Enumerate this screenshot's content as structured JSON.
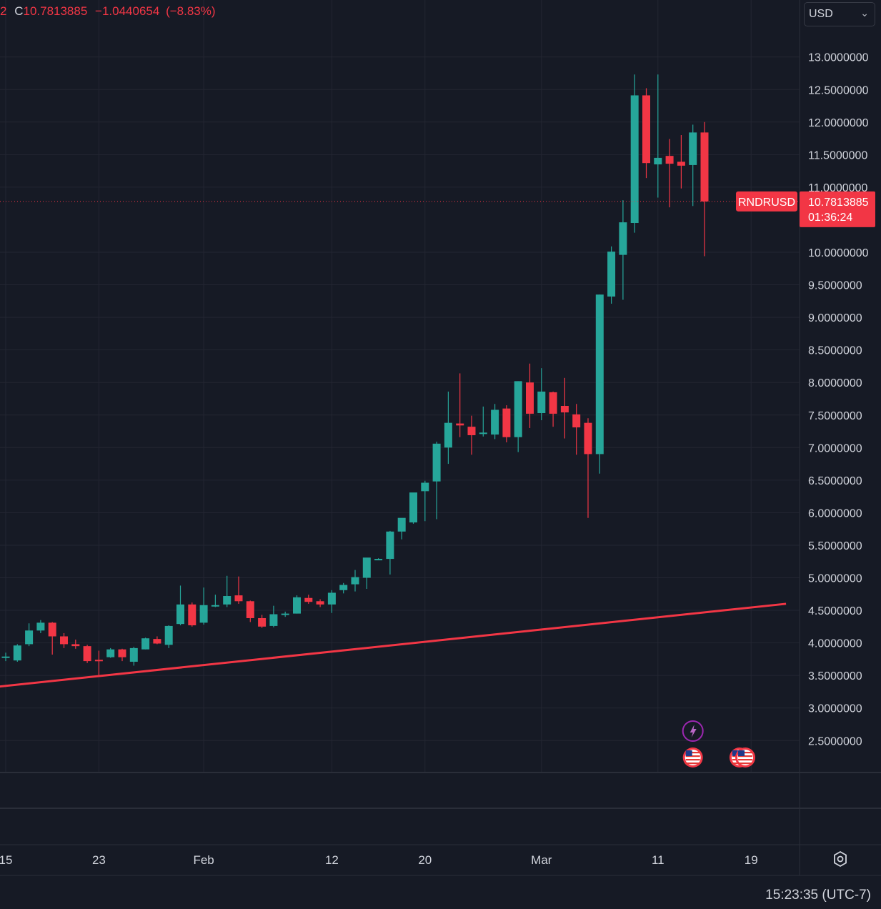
{
  "header": {
    "prefix": "2",
    "close_label": "C",
    "close_value": "10.7813885",
    "change": "−1.0440654",
    "change_pct": "(−8.83%)"
  },
  "currency_select": {
    "value": "USD",
    "icon": "chevron-down-icon"
  },
  "price_tag": {
    "symbol": "RNDRUSD",
    "price": "10.7813885",
    "countdown": "01:36:24"
  },
  "clock": "15:23:35 (UTC-7)",
  "colors": {
    "up": "#26a69a",
    "down": "#f23645",
    "background": "#161a25",
    "grid": "#232632"
  },
  "chart_data": {
    "type": "candlestick",
    "symbol": "RNDRUSD",
    "currency": "USD",
    "y_ticks": [
      "13.0000000",
      "12.5000000",
      "12.0000000",
      "11.5000000",
      "11.0000000",
      "10.0000000",
      "9.5000000",
      "9.0000000",
      "8.5000000",
      "8.0000000",
      "7.5000000",
      "7.0000000",
      "6.5000000",
      "6.0000000",
      "5.5000000",
      "5.0000000",
      "4.5000000",
      "4.0000000",
      "3.5000000",
      "3.0000000",
      "2.5000000"
    ],
    "x_ticks": [
      {
        "label": "15",
        "day": 0
      },
      {
        "label": "23",
        "day": 8
      },
      {
        "label": "Feb",
        "day": 17
      },
      {
        "label": "12",
        "day": 28
      },
      {
        "label": "20",
        "day": 36
      },
      {
        "label": "Mar",
        "day": 46
      },
      {
        "label": "11",
        "day": 56
      },
      {
        "label": "19",
        "day": 64
      }
    ],
    "candles": [
      {
        "o": 3.77,
        "h": 3.85,
        "l": 3.72,
        "c": 3.79
      },
      {
        "o": 3.73,
        "h": 3.98,
        "l": 3.71,
        "c": 3.96
      },
      {
        "o": 3.98,
        "h": 4.3,
        "l": 3.95,
        "c": 4.19
      },
      {
        "o": 4.19,
        "h": 4.35,
        "l": 4.15,
        "c": 4.31
      },
      {
        "o": 4.31,
        "h": 4.32,
        "l": 3.82,
        "c": 4.1
      },
      {
        "o": 4.1,
        "h": 4.15,
        "l": 3.92,
        "c": 3.98
      },
      {
        "o": 3.98,
        "h": 4.05,
        "l": 3.91,
        "c": 3.95
      },
      {
        "o": 3.95,
        "h": 3.97,
        "l": 3.69,
        "c": 3.72
      },
      {
        "o": 3.74,
        "h": 3.88,
        "l": 3.5,
        "c": 3.73
      },
      {
        "o": 3.78,
        "h": 3.92,
        "l": 3.77,
        "c": 3.9
      },
      {
        "o": 3.9,
        "h": 3.91,
        "l": 3.72,
        "c": 3.78
      },
      {
        "o": 3.71,
        "h": 3.94,
        "l": 3.65,
        "c": 3.92
      },
      {
        "o": 3.9,
        "h": 4.08,
        "l": 3.9,
        "c": 4.07
      },
      {
        "o": 4.06,
        "h": 4.1,
        "l": 3.98,
        "c": 3.99
      },
      {
        "o": 3.97,
        "h": 4.27,
        "l": 3.92,
        "c": 4.26
      },
      {
        "o": 4.29,
        "h": 4.88,
        "l": 4.27,
        "c": 4.59
      },
      {
        "o": 4.59,
        "h": 4.62,
        "l": 4.25,
        "c": 4.27
      },
      {
        "o": 4.31,
        "h": 4.85,
        "l": 4.28,
        "c": 4.58
      },
      {
        "o": 4.58,
        "h": 4.74,
        "l": 4.55,
        "c": 4.58
      },
      {
        "o": 4.59,
        "h": 5.03,
        "l": 4.55,
        "c": 4.72
      },
      {
        "o": 4.73,
        "h": 5.02,
        "l": 4.6,
        "c": 4.64
      },
      {
        "o": 4.64,
        "h": 4.65,
        "l": 4.32,
        "c": 4.38
      },
      {
        "o": 4.38,
        "h": 4.43,
        "l": 4.23,
        "c": 4.25
      },
      {
        "o": 4.26,
        "h": 4.57,
        "l": 4.24,
        "c": 4.44
      },
      {
        "o": 4.43,
        "h": 4.48,
        "l": 4.4,
        "c": 4.45
      },
      {
        "o": 4.45,
        "h": 4.73,
        "l": 4.45,
        "c": 4.7
      },
      {
        "o": 4.69,
        "h": 4.74,
        "l": 4.6,
        "c": 4.63
      },
      {
        "o": 4.64,
        "h": 4.67,
        "l": 4.55,
        "c": 4.59
      },
      {
        "o": 4.59,
        "h": 4.81,
        "l": 4.46,
        "c": 4.77
      },
      {
        "o": 4.81,
        "h": 4.92,
        "l": 4.76,
        "c": 4.89
      },
      {
        "o": 4.9,
        "h": 5.12,
        "l": 4.79,
        "c": 5.01
      },
      {
        "o": 5.0,
        "h": 5.3,
        "l": 4.83,
        "c": 5.31
      },
      {
        "o": 5.29,
        "h": 5.3,
        "l": 5.28,
        "c": 5.29
      },
      {
        "o": 5.29,
        "h": 5.72,
        "l": 5.05,
        "c": 5.71
      },
      {
        "o": 5.71,
        "h": 5.91,
        "l": 5.59,
        "c": 5.92
      },
      {
        "o": 5.85,
        "h": 6.27,
        "l": 5.83,
        "c": 6.31
      },
      {
        "o": 6.33,
        "h": 6.49,
        "l": 5.87,
        "c": 6.46
      },
      {
        "o": 6.48,
        "h": 7.09,
        "l": 5.9,
        "c": 7.06
      },
      {
        "o": 7.0,
        "h": 7.86,
        "l": 6.75,
        "c": 7.38
      },
      {
        "o": 7.37,
        "h": 8.14,
        "l": 7.16,
        "c": 7.34
      },
      {
        "o": 7.32,
        "h": 7.49,
        "l": 6.89,
        "c": 7.19
      },
      {
        "o": 7.22,
        "h": 7.63,
        "l": 7.17,
        "c": 7.23
      },
      {
        "o": 7.2,
        "h": 7.67,
        "l": 7.13,
        "c": 7.58
      },
      {
        "o": 7.6,
        "h": 7.65,
        "l": 7.08,
        "c": 7.16
      },
      {
        "o": 7.16,
        "h": 8.02,
        "l": 6.93,
        "c": 8.02
      },
      {
        "o": 8.0,
        "h": 8.29,
        "l": 7.3,
        "c": 7.52
      },
      {
        "o": 7.53,
        "h": 8.22,
        "l": 7.42,
        "c": 7.86
      },
      {
        "o": 7.85,
        "h": 7.86,
        "l": 7.32,
        "c": 7.52
      },
      {
        "o": 7.64,
        "h": 8.07,
        "l": 7.14,
        "c": 7.54
      },
      {
        "o": 7.51,
        "h": 7.67,
        "l": 6.89,
        "c": 7.31
      },
      {
        "o": 7.38,
        "h": 7.45,
        "l": 5.92,
        "c": 6.9
      },
      {
        "o": 6.9,
        "h": 9.35,
        "l": 6.6,
        "c": 9.35
      },
      {
        "o": 9.32,
        "h": 10.09,
        "l": 9.21,
        "c": 10.01
      },
      {
        "o": 9.96,
        "h": 10.8,
        "l": 9.27,
        "c": 10.46
      },
      {
        "o": 10.45,
        "h": 12.73,
        "l": 10.3,
        "c": 12.41
      },
      {
        "o": 12.41,
        "h": 12.52,
        "l": 11.14,
        "c": 11.37
      },
      {
        "o": 11.35,
        "h": 12.73,
        "l": 10.84,
        "c": 11.45
      },
      {
        "o": 11.48,
        "h": 11.74,
        "l": 10.69,
        "c": 11.36
      },
      {
        "o": 11.39,
        "h": 11.8,
        "l": 10.98,
        "c": 11.33
      },
      {
        "o": 11.34,
        "h": 11.96,
        "l": 10.71,
        "c": 11.84
      },
      {
        "o": 11.84,
        "h": 12.0,
        "l": 9.94,
        "c": 10.78
      }
    ],
    "trendline": {
      "start": {
        "day": -0.5,
        "price": 3.33
      },
      "end": {
        "day": 67,
        "price": 4.6
      },
      "color": "#f23645"
    },
    "current_price": 10.7813885,
    "events": [
      {
        "day": 59,
        "kind": "lightning-icon"
      },
      {
        "day": 59,
        "kind": "us-flag-icon"
      },
      {
        "day": 63,
        "kind": "us-flag-icon"
      },
      {
        "day": 63.5,
        "kind": "us-flag-icon"
      }
    ]
  }
}
